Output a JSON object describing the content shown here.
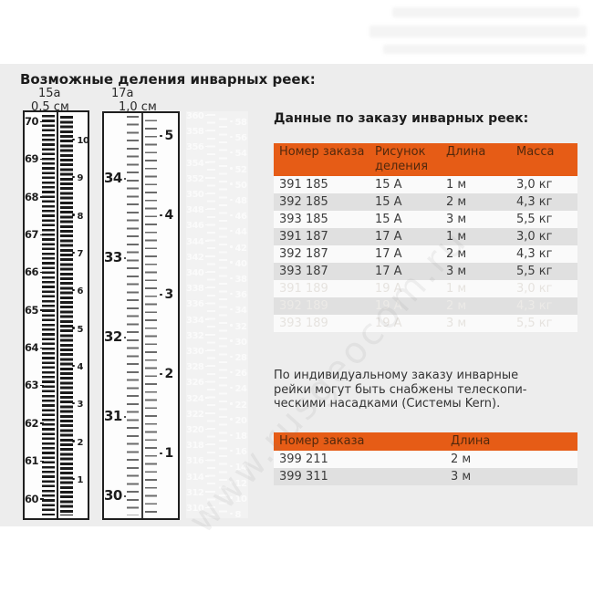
{
  "title": "Возможные деления инварных реек:",
  "orders_heading": "Данные по заказу инварных реек:",
  "note_lines": [
    "По индивидуальному заказу инварные",
    "рейки могут быть снабжены телескопи-",
    "ческими насадками (Системы Kern)."
  ],
  "rulers": [
    {
      "label": "15а",
      "division": "0,5 см",
      "left_numbers": [
        70,
        69,
        68,
        67,
        66,
        65,
        64,
        63,
        62,
        61,
        60
      ],
      "right_numbers": [
        10,
        9,
        8,
        7,
        6,
        5,
        4,
        3,
        2,
        1
      ]
    },
    {
      "label": "17а",
      "division": "1,0 см",
      "left_numbers": [
        34,
        33,
        32,
        31,
        30
      ],
      "right_numbers": [
        5,
        4,
        3,
        2,
        1
      ]
    },
    {
      "left_numbers": [
        360,
        358,
        356,
        354,
        352,
        350,
        348,
        346,
        344,
        342,
        340,
        338,
        336,
        334,
        332,
        330,
        328,
        326,
        324,
        322,
        320,
        318,
        316,
        314,
        312,
        310
      ],
      "right_numbers": [
        58,
        56,
        54,
        52,
        50,
        48,
        46,
        44,
        42,
        40,
        38,
        36,
        34,
        32,
        30,
        28,
        26,
        24,
        22,
        20,
        18,
        16,
        14,
        12,
        10,
        8
      ]
    }
  ],
  "orders_table": {
    "headers": [
      "Номер заказа",
      "Рисунок деления",
      "Длина",
      "Масса"
    ],
    "rows": [
      {
        "cells": [
          "391 185",
          "15 А",
          "1 м",
          "3,0 кг"
        ],
        "muted": false
      },
      {
        "cells": [
          "392 185",
          "15 А",
          "2 м",
          "4,3 кг"
        ],
        "muted": false
      },
      {
        "cells": [
          "393 185",
          "15 А",
          "3 м",
          "5,5 кг"
        ],
        "muted": false
      },
      {
        "cells": [
          "391 187",
          "17 А",
          "1 м",
          "3,0 кг"
        ],
        "muted": false
      },
      {
        "cells": [
          "392 187",
          "17 А",
          "2 м",
          "4,3 кг"
        ],
        "muted": false
      },
      {
        "cells": [
          "393 187",
          "17 А",
          "3 м",
          "5,5 кг"
        ],
        "muted": false
      },
      {
        "cells": [
          "391 189",
          "19 А",
          "1 м",
          "3,0 кг"
        ],
        "muted": true
      },
      {
        "cells": [
          "392 189",
          "19 А",
          "2 м",
          "4,3 кг"
        ],
        "muted": true
      },
      {
        "cells": [
          "393 189",
          "19 А",
          "3 м",
          "5,5 кг"
        ],
        "muted": true
      }
    ]
  },
  "telescopic_table": {
    "headers": [
      "Номер заказа",
      "Длина"
    ],
    "rows": [
      {
        "cells": [
          "399 211",
          "2 м"
        ],
        "muted": false
      },
      {
        "cells": [
          "399 311",
          "3 м"
        ],
        "muted": false
      }
    ]
  },
  "watermark": "www.rusgeocom.ru",
  "colors": {
    "accent_orange": "#e65c16",
    "header_text": "#53290d",
    "panel_gray": "#ededed",
    "row_white": "#fafafa",
    "row_gray": "#e0e0e0",
    "body_text": "#3c3c3c"
  }
}
